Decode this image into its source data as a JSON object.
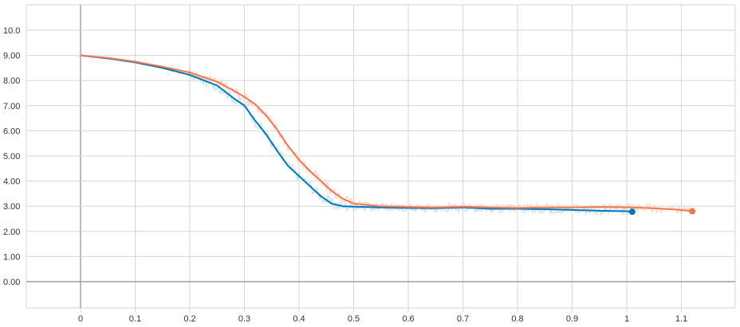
{
  "chart_data": {
    "type": "line",
    "title": "",
    "xlabel": "",
    "ylabel": "",
    "xlim": [
      -0.1,
      1.2
    ],
    "ylim": [
      -1.0,
      11.0
    ],
    "grid": true,
    "x_ticks": [
      "0",
      "0.1",
      "0.2",
      "0.3",
      "0.4",
      "0.5",
      "0.6",
      "0.7",
      "0.8",
      "0.9",
      "1",
      "1.1"
    ],
    "x_tick_values": [
      0,
      0.1,
      0.2,
      0.3,
      0.4,
      0.5,
      0.6,
      0.7,
      0.8,
      0.9,
      1.0,
      1.1
    ],
    "y_ticks": [
      "0.00",
      "1.00",
      "2.00",
      "3.00",
      "4.00",
      "5.00",
      "6.00",
      "7.00",
      "8.00",
      "9.00",
      "10.0"
    ],
    "y_tick_values": [
      0,
      1,
      2,
      3,
      4,
      5,
      6,
      7,
      8,
      9,
      10
    ],
    "series": [
      {
        "color": "#0077bb",
        "raw_color": "#c6e2f3",
        "x": [
          0,
          0.05,
          0.1,
          0.15,
          0.2,
          0.25,
          0.28,
          0.3,
          0.32,
          0.34,
          0.36,
          0.38,
          0.4,
          0.42,
          0.44,
          0.46,
          0.48,
          0.5,
          0.55,
          0.6,
          0.65,
          0.7,
          0.75,
          0.8,
          0.85,
          0.9,
          0.95,
          1.0,
          1.01
        ],
        "y": [
          9.0,
          8.88,
          8.72,
          8.5,
          8.22,
          7.8,
          7.3,
          7.0,
          6.4,
          5.85,
          5.2,
          4.6,
          4.2,
          3.8,
          3.4,
          3.1,
          3.0,
          2.98,
          2.95,
          2.93,
          2.92,
          2.95,
          2.9,
          2.9,
          2.88,
          2.85,
          2.82,
          2.8,
          2.78
        ]
      },
      {
        "color": "#f07850",
        "raw_color": "#fcd6c6",
        "x": [
          0,
          0.05,
          0.1,
          0.15,
          0.2,
          0.25,
          0.28,
          0.3,
          0.32,
          0.34,
          0.36,
          0.38,
          0.4,
          0.42,
          0.44,
          0.46,
          0.48,
          0.5,
          0.55,
          0.6,
          0.65,
          0.7,
          0.75,
          0.8,
          0.85,
          0.9,
          0.95,
          1.0,
          1.05,
          1.1,
          1.12
        ],
        "y": [
          9.0,
          8.9,
          8.75,
          8.55,
          8.32,
          7.95,
          7.6,
          7.35,
          7.05,
          6.6,
          6.05,
          5.4,
          4.85,
          4.4,
          4.0,
          3.6,
          3.3,
          3.1,
          3.0,
          2.97,
          2.95,
          2.98,
          2.95,
          2.93,
          2.95,
          2.95,
          2.97,
          2.96,
          2.92,
          2.85,
          2.8
        ]
      }
    ]
  }
}
